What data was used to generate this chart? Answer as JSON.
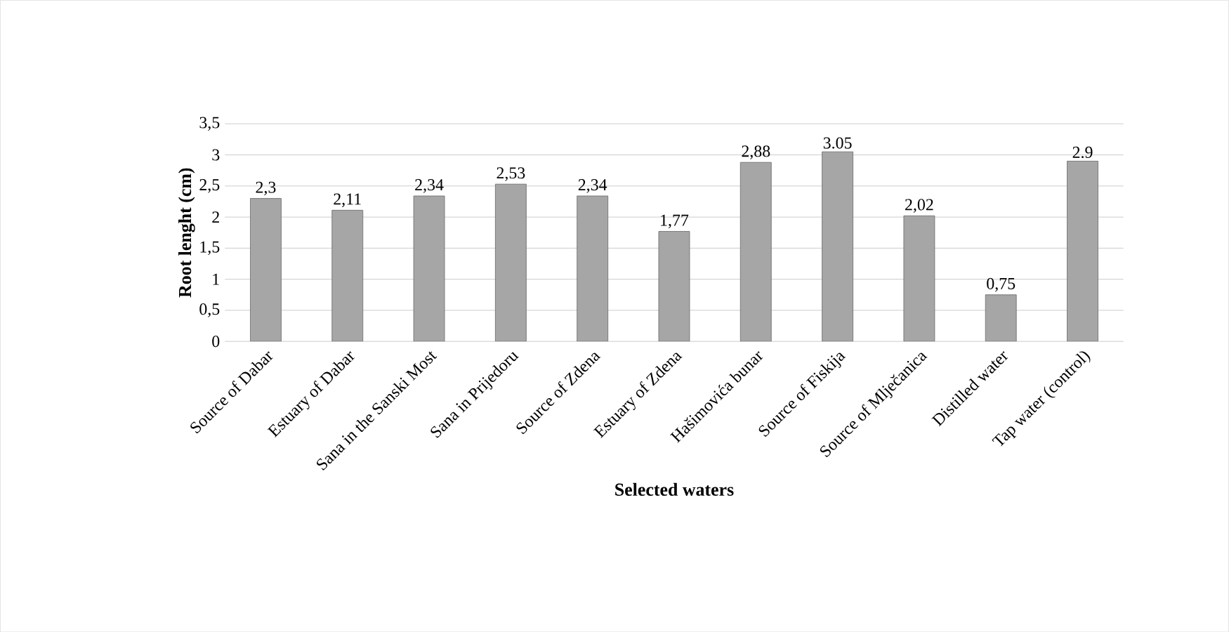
{
  "chart_data": {
    "type": "bar",
    "xlabel": "Selected waters",
    "ylabel": "Root lenght (cm)",
    "categories": [
      "Source of Dabar",
      "Estuary of Dabar",
      "Sana in the Sanski Most",
      "Sana in Prijedoru",
      "Source of Zdena",
      "Estuary of Zdena",
      "Hašimovića bunar",
      "Source of Fiskija",
      "Source of Mlječanica",
      "Distilled water",
      "Tap water (control)"
    ],
    "values": [
      2.3,
      2.11,
      2.34,
      2.53,
      2.34,
      1.77,
      2.88,
      3.05,
      2.02,
      0.75,
      2.9
    ],
    "value_labels": [
      "2,3",
      "2,11",
      "2,34",
      "2,53",
      "2,34",
      "1,77",
      "2,88",
      "3.05",
      "2,02",
      "0,75",
      "2.9"
    ],
    "color": "#a6a6a6",
    "ylim": [
      0,
      3.5
    ],
    "yticks": [
      0,
      {
        "value": 0.5,
        "label": "0,5"
      },
      1,
      {
        "value": 1.5,
        "label": "1,5"
      },
      2,
      {
        "value": 2.5,
        "label": "2,5"
      },
      3,
      {
        "value": 3.5,
        "label": "3,5"
      }
    ],
    "grid": "y"
  }
}
